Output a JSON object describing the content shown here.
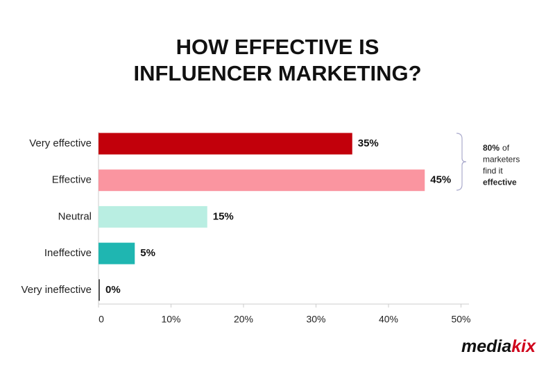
{
  "chart_data": {
    "type": "bar",
    "orientation": "horizontal",
    "title": [
      "HOW EFFECTIVE IS",
      "INFLUENCER MARKETING?"
    ],
    "categories": [
      "Very effective",
      "Effective",
      "Neutral",
      "Ineffective",
      "Very ineffective"
    ],
    "values": [
      35,
      45,
      15,
      5,
      0
    ],
    "value_labels": [
      "35%",
      "45%",
      "15%",
      "5%",
      "0%"
    ],
    "colors": [
      "#c2000b",
      "#fa95a0",
      "#b9eee2",
      "#1fb6b1",
      "#555555"
    ],
    "xlim": [
      0,
      50
    ],
    "xticks": [
      0,
      {
        "value": 10,
        "label": "10%"
      },
      {
        "value": 20,
        "label": "20%"
      },
      {
        "value": 30,
        "label": "30%"
      },
      {
        "value": 40,
        "label": "40%"
      },
      {
        "value": 50,
        "label": "50%"
      }
    ],
    "grid": false,
    "annotation": [
      {
        "bold": "80%",
        "text": "of"
      },
      {
        "text": "marketers"
      },
      {
        "text": "find it"
      },
      {
        "bold": "effective"
      }
    ],
    "logo": [
      "media",
      "kix"
    ]
  }
}
